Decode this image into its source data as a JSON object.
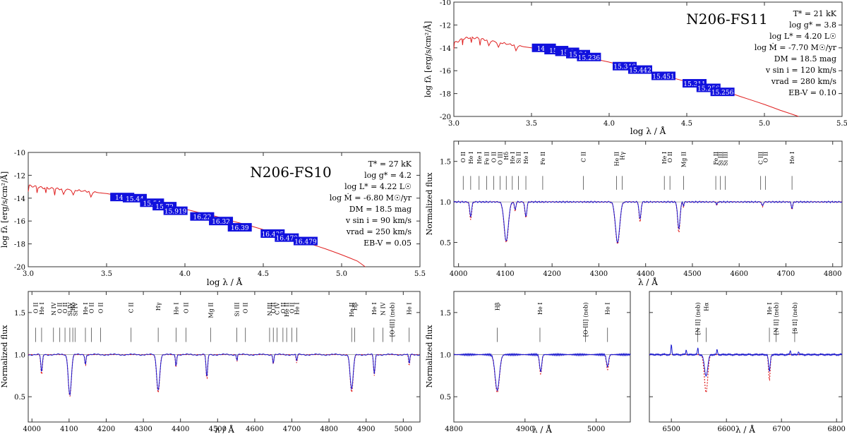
{
  "chart_data": [
    {
      "id": "sed-fs11",
      "type": "line",
      "title": "N206-FS11",
      "xlabel": "log λ / Å",
      "ylabel": "log fλ [erg/s/cm²/Å]",
      "xlim": [
        3.0,
        5.5
      ],
      "ylim": [
        -20,
        -10
      ],
      "xticks": [
        "3.0",
        "3.5",
        "4.0",
        "4.5",
        "5.0",
        "5.5"
      ],
      "yticks": [
        "-10",
        "-12",
        "-14",
        "-16",
        "-18",
        "-20"
      ],
      "params": [
        "T* = 21 kK",
        "log g* = 3.8",
        "log L* = 4.20 L☉",
        "log Ṁ = -7.70 M☉/yr",
        "DM = 18.5 mag",
        "v sin i = 120 km/s",
        "vrad = 280 km/s",
        "EB-V = 0.10"
      ],
      "model_curve": {
        "x": [
          3.0,
          3.03,
          3.06,
          3.1,
          3.15,
          3.2,
          3.3,
          3.4,
          3.5,
          3.6,
          3.7,
          3.8,
          3.9,
          4.0,
          4.1,
          4.2,
          4.3,
          4.4,
          4.5,
          4.6,
          4.7,
          4.8,
          4.9,
          5.0,
          5.1,
          5.22
        ],
        "y": [
          -13.6,
          -13.4,
          -13.2,
          -13.1,
          -13.15,
          -13.3,
          -13.55,
          -13.8,
          -14.0,
          -14.2,
          -14.45,
          -14.7,
          -14.95,
          -15.25,
          -15.6,
          -15.9,
          -16.25,
          -16.6,
          -16.95,
          -17.3,
          -17.65,
          -18.05,
          -18.5,
          -18.95,
          -19.45,
          -20.0
        ]
      },
      "photometry": [
        {
          "x": 3.58,
          "y": -14.0,
          "label": "14.9"
        },
        {
          "x": 3.66,
          "y": -14.2,
          "label": "15.2"
        },
        {
          "x": 3.73,
          "y": -14.35,
          "label": "15.3"
        },
        {
          "x": 3.8,
          "y": -14.55,
          "label": "15.24"
        },
        {
          "x": 3.87,
          "y": -14.8,
          "label": "15.236"
        },
        {
          "x": 4.1,
          "y": -15.6,
          "label": "15.346"
        },
        {
          "x": 4.2,
          "y": -15.9,
          "label": "15.442"
        },
        {
          "x": 4.35,
          "y": -16.45,
          "label": "15.451"
        },
        {
          "x": 4.55,
          "y": -17.1,
          "label": "15.311"
        },
        {
          "x": 4.64,
          "y": -17.5,
          "label": "15.256"
        },
        {
          "x": 4.73,
          "y": -17.85,
          "label": "15.256"
        }
      ]
    },
    {
      "id": "sed-fs10",
      "type": "line",
      "title": "N206-FS10",
      "xlabel": "log λ / Å",
      "ylabel": "log fλ [erg/s/cm²/Å]",
      "xlim": [
        3.0,
        5.5
      ],
      "ylim": [
        -20,
        -10
      ],
      "xticks": [
        "3.0",
        "3.5",
        "4.0",
        "4.5",
        "5.0",
        "5.5"
      ],
      "yticks": [
        "-10",
        "-12",
        "-14",
        "-16",
        "-18",
        "-20"
      ],
      "params": [
        "T* = 27 kK",
        "log g* = 4.2",
        "log L* = 4.22 L☉",
        "log Ṁ = -6.80 M☉/yr",
        "DM = 18.5 mag",
        "v sin i = 90 km/s",
        "vrad = 250 km/s",
        "EB-V = 0.05"
      ],
      "model_curve": {
        "x": [
          3.0,
          3.05,
          3.1,
          3.15,
          3.2,
          3.3,
          3.4,
          3.5,
          3.6,
          3.7,
          3.8,
          3.9,
          4.0,
          4.1,
          4.2,
          4.3,
          4.4,
          4.5,
          4.6,
          4.7,
          4.8,
          4.9,
          5.0,
          5.1,
          5.15
        ],
        "y": [
          -12.9,
          -13.0,
          -13.1,
          -13.15,
          -13.2,
          -13.3,
          -13.45,
          -13.6,
          -13.85,
          -14.1,
          -14.35,
          -14.65,
          -14.95,
          -15.3,
          -15.6,
          -16.0,
          -16.35,
          -16.75,
          -17.15,
          -17.55,
          -18.0,
          -18.45,
          -18.95,
          -19.5,
          -20.0
        ]
      },
      "photometry": [
        {
          "x": 3.6,
          "y": -13.9,
          "label": "14.9"
        },
        {
          "x": 3.68,
          "y": -14.0,
          "label": "15.44"
        },
        {
          "x": 3.79,
          "y": -14.4,
          "label": "15.54"
        },
        {
          "x": 3.87,
          "y": -14.7,
          "label": "15.72"
        },
        {
          "x": 3.94,
          "y": -15.1,
          "label": "15.919"
        },
        {
          "x": 4.11,
          "y": -15.6,
          "label": "16.22"
        },
        {
          "x": 4.23,
          "y": -16.0,
          "label": "16.32"
        },
        {
          "x": 4.35,
          "y": -16.55,
          "label": "16.39"
        },
        {
          "x": 4.56,
          "y": -17.1,
          "label": "16.435"
        },
        {
          "x": 4.65,
          "y": -17.45,
          "label": "16.470"
        },
        {
          "x": 4.77,
          "y": -17.75,
          "label": "16.479"
        }
      ]
    },
    {
      "id": "spec-fs11",
      "type": "line",
      "xlabel": "λ / Å",
      "ylabel": "Normalized flux",
      "xlim": [
        3990,
        4820
      ],
      "ylim": [
        0.2,
        1.75
      ],
      "xticks": [
        4000,
        4100,
        4200,
        4300,
        4400,
        4500,
        4600,
        4700,
        4800
      ],
      "yticks": [
        0.5,
        1.0,
        1.5
      ],
      "continuum": 1.0,
      "lines": [
        {
          "wl": 4026,
          "depth_obs": 0.18,
          "depth_model": 0.22,
          "width": 4
        },
        {
          "wl": 4102,
          "depth_obs": 0.48,
          "depth_model": 0.5,
          "width": 9
        },
        {
          "wl": 4121,
          "depth_obs": 0.1,
          "depth_model": 0.12,
          "width": 3
        },
        {
          "wl": 4144,
          "depth_obs": 0.18,
          "depth_model": 0.2,
          "width": 4
        },
        {
          "wl": 4340,
          "depth_obs": 0.5,
          "depth_model": 0.52,
          "width": 9
        },
        {
          "wl": 4388,
          "depth_obs": 0.22,
          "depth_model": 0.25,
          "width": 4
        },
        {
          "wl": 4471,
          "depth_obs": 0.34,
          "depth_model": 0.38,
          "width": 5
        },
        {
          "wl": 4481,
          "depth_obs": 0.05,
          "depth_model": 0.07,
          "width": 2
        },
        {
          "wl": 4552,
          "depth_obs": 0.04,
          "depth_model": 0.05,
          "width": 2
        },
        {
          "wl": 4650,
          "depth_obs": 0.05,
          "depth_model": 0.06,
          "width": 3
        },
        {
          "wl": 4713,
          "depth_obs": 0.08,
          "depth_model": 0.1,
          "width": 3
        }
      ],
      "labels": [
        {
          "wl": 4010,
          "text": "O II"
        },
        {
          "wl": 4026,
          "text": "He I"
        },
        {
          "wl": 4044,
          "text": "He I"
        },
        {
          "wl": 4060,
          "text": "Fe II"
        },
        {
          "wl": 4075,
          "text": "O II"
        },
        {
          "wl": 4089,
          "text": "O III"
        },
        {
          "wl": 4102,
          "text": "Hδ"
        },
        {
          "wl": 4115,
          "text": "He I"
        },
        {
          "wl": 4128,
          "text": "Si II"
        },
        {
          "wl": 4144,
          "text": "He I"
        },
        {
          "wl": 4180,
          "text": "Fe II"
        },
        {
          "wl": 4267,
          "text": "C II"
        },
        {
          "wl": 4338,
          "text": "He II"
        },
        {
          "wl": 4350,
          "text": "Hγ"
        },
        {
          "wl": 4440,
          "text": "He I"
        },
        {
          "wl": 4452,
          "text": "O II"
        },
        {
          "wl": 4481,
          "text": "Mg II"
        },
        {
          "wl": 4550,
          "text": "Fe II"
        },
        {
          "wl": 4560,
          "text": "Si III"
        },
        {
          "wl": 4570,
          "text": "Si III"
        },
        {
          "wl": 4646,
          "text": "C III"
        },
        {
          "wl": 4656,
          "text": "O II"
        },
        {
          "wl": 4713,
          "text": "He I"
        }
      ]
    },
    {
      "id": "spec-fs10-blue",
      "type": "line",
      "xlabel": "λ / Å",
      "ylabel": "Normalized flux",
      "xlim": [
        3990,
        5045
      ],
      "ylim": [
        0.2,
        1.75
      ],
      "xticks": [
        4000,
        4100,
        4200,
        4300,
        4400,
        4500,
        4600,
        4700,
        4800,
        4900,
        5000
      ],
      "yticks": [
        0.5,
        1.0,
        1.5
      ],
      "continuum": 1.0,
      "lines": [
        {
          "wl": 4026,
          "depth_obs": 0.22,
          "depth_model": 0.25,
          "width": 4
        },
        {
          "wl": 4102,
          "depth_obs": 0.48,
          "depth_model": 0.5,
          "width": 8
        },
        {
          "wl": 4144,
          "depth_obs": 0.12,
          "depth_model": 0.14,
          "width": 3
        },
        {
          "wl": 4340,
          "depth_obs": 0.42,
          "depth_model": 0.45,
          "width": 8
        },
        {
          "wl": 4388,
          "depth_obs": 0.14,
          "depth_model": 0.16,
          "width": 3
        },
        {
          "wl": 4471,
          "depth_obs": 0.28,
          "depth_model": 0.3,
          "width": 4
        },
        {
          "wl": 4552,
          "depth_obs": 0.08,
          "depth_model": 0.1,
          "width": 2
        },
        {
          "wl": 4650,
          "depth_obs": 0.1,
          "depth_model": 0.12,
          "width": 3
        },
        {
          "wl": 4713,
          "depth_obs": 0.08,
          "depth_model": 0.1,
          "width": 3
        },
        {
          "wl": 4861,
          "depth_obs": 0.42,
          "depth_model": 0.45,
          "width": 8
        },
        {
          "wl": 4922,
          "depth_obs": 0.23,
          "depth_model": 0.25,
          "width": 4
        },
        {
          "wl": 5016,
          "depth_obs": 0.12,
          "depth_model": 0.14,
          "width": 3
        }
      ],
      "labels": [
        {
          "wl": 4010,
          "text": "O II"
        },
        {
          "wl": 4026,
          "text": "He I"
        },
        {
          "wl": 4058,
          "text": "N IV"
        },
        {
          "wl": 4075,
          "text": "O II"
        },
        {
          "wl": 4089,
          "text": "O II"
        },
        {
          "wl": 4102,
          "text": "Si IV"
        },
        {
          "wl": 4110,
          "text": "Hδ"
        },
        {
          "wl": 4116,
          "text": "Si IV"
        },
        {
          "wl": 4144,
          "text": "He I"
        },
        {
          "wl": 4160,
          "text": "O II"
        },
        {
          "wl": 4185,
          "text": "O II"
        },
        {
          "wl": 4267,
          "text": "C II"
        },
        {
          "wl": 4340,
          "text": "Hγ"
        },
        {
          "wl": 4388,
          "text": "He I"
        },
        {
          "wl": 4415,
          "text": "O II"
        },
        {
          "wl": 4481,
          "text": "Mg II"
        },
        {
          "wl": 4552,
          "text": "Si III"
        },
        {
          "wl": 4575,
          "text": "O II"
        },
        {
          "wl": 4640,
          "text": "N III"
        },
        {
          "wl": 4650,
          "text": "O II"
        },
        {
          "wl": 4660,
          "text": "C IV"
        },
        {
          "wl": 4676,
          "text": "O II"
        },
        {
          "wl": 4686,
          "text": "He II"
        },
        {
          "wl": 4700,
          "text": "O II"
        },
        {
          "wl": 4713,
          "text": "He I"
        },
        {
          "wl": 4861,
          "text": "He II"
        },
        {
          "wl": 4869,
          "text": "Hβ"
        },
        {
          "wl": 4921,
          "text": "He I"
        },
        {
          "wl": 4945,
          "text": "N IV"
        },
        {
          "wl": 4970,
          "text": "[O III] (neb)"
        },
        {
          "wl": 5016,
          "text": "He I"
        }
      ]
    },
    {
      "id": "spec-fs10-hbeta",
      "type": "line",
      "xlabel": "λ / Å",
      "ylabel": "Normalized flux",
      "xlim": [
        4800,
        5048
      ],
      "ylim": [
        0.2,
        1.75
      ],
      "xticks": [
        4800,
        4900,
        5000
      ],
      "yticks": [
        0.5,
        1.0,
        1.5
      ],
      "continuum": 1.0,
      "lines": [
        {
          "wl": 4861,
          "depth_obs": 0.42,
          "depth_model": 0.45,
          "width": 6
        },
        {
          "wl": 4922,
          "depth_obs": 0.2,
          "depth_model": 0.23,
          "width": 3
        },
        {
          "wl": 5016,
          "depth_obs": 0.14,
          "depth_model": 0.18,
          "width": 3
        }
      ],
      "labels": [
        {
          "wl": 4861,
          "text": "Hβ"
        },
        {
          "wl": 4921,
          "text": "He I"
        },
        {
          "wl": 4985,
          "text": "[O III] (neb)"
        },
        {
          "wl": 5016,
          "text": "He I"
        }
      ]
    },
    {
      "id": "spec-fs10-halpha",
      "type": "line",
      "xlabel": "λ / Å",
      "ylabel": "",
      "xlim": [
        6460,
        6810
      ],
      "ylim": [
        0.2,
        1.75
      ],
      "xticks": [
        6500,
        6600,
        6700,
        6800
      ],
      "yticks": [
        0.5,
        1.0,
        1.5
      ],
      "continuum": 1.0,
      "lines": [
        {
          "wl": 6563,
          "depth_obs": 0.25,
          "depth_model": 0.45,
          "width": 6
        },
        {
          "wl": 6678,
          "depth_obs": 0.2,
          "depth_model": 0.3,
          "width": 3
        }
      ],
      "emission": [
        {
          "wl": 6548,
          "height": 0.08
        },
        {
          "wl": 6583,
          "height": 0.06
        },
        {
          "wl": 6716,
          "height": 0.05
        },
        {
          "wl": 6731,
          "height": 0.04
        },
        {
          "wl": 6500,
          "height": 0.12
        },
        {
          "wl": 6527,
          "height": 0.06
        }
      ],
      "labels": [
        {
          "wl": 6548,
          "text": "[N II] (neb)"
        },
        {
          "wl": 6563,
          "text": "Hα"
        },
        {
          "wl": 6678,
          "text": "He I"
        },
        {
          "wl": 6690,
          "text": "[N II] (neb)"
        },
        {
          "wl": 6724,
          "text": "[S II] (neb)"
        }
      ]
    }
  ]
}
